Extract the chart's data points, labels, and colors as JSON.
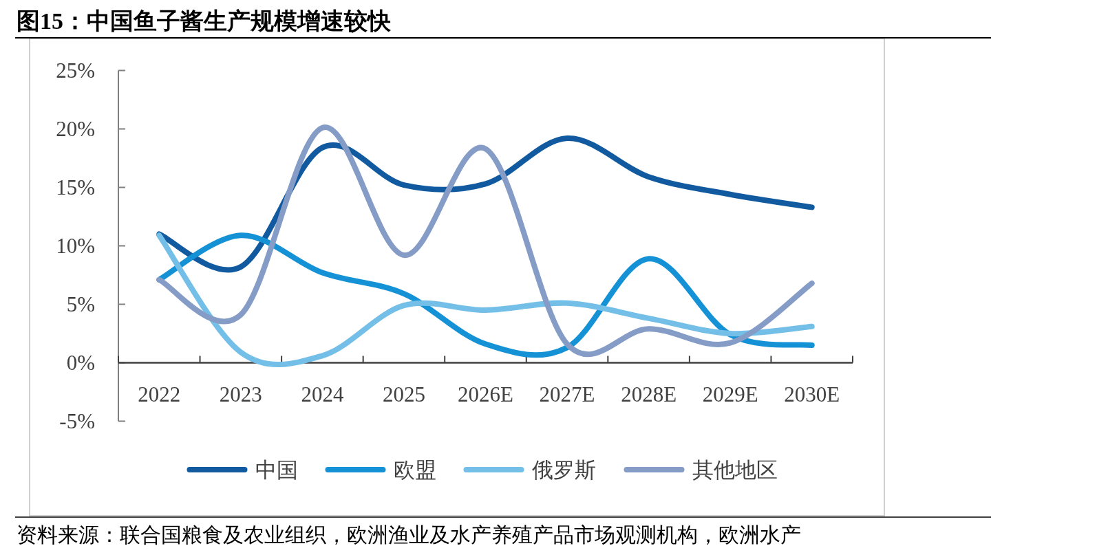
{
  "chart_data": {
    "type": "line",
    "title": "图15：中国鱼子酱生产规模增速较快",
    "categories": [
      "2022",
      "2023",
      "2024",
      "2025",
      "2026E",
      "2027E",
      "2028E",
      "2029E",
      "2030E"
    ],
    "series": [
      {
        "name": "中国",
        "color": "#115a9f",
        "values": [
          11.0,
          8.2,
          18.4,
          15.2,
          15.3,
          19.2,
          15.9,
          14.4,
          13.3
        ]
      },
      {
        "name": "欧盟",
        "color": "#1592d6",
        "values": [
          7.1,
          10.9,
          7.7,
          5.9,
          1.6,
          1.3,
          8.9,
          2.4,
          1.5
        ]
      },
      {
        "name": "俄罗斯",
        "color": "#74bfe8",
        "values": [
          10.9,
          0.9,
          0.6,
          4.9,
          4.5,
          5.1,
          3.8,
          2.5,
          3.1
        ]
      },
      {
        "name": "其他地区",
        "color": "#849cc6",
        "values": [
          7.1,
          4.1,
          20.1,
          9.2,
          18.3,
          1.6,
          2.9,
          1.7,
          6.8
        ]
      }
    ],
    "ylim": [
      -5,
      25
    ],
    "yticks": [
      {
        "value": -5,
        "label": "-5%"
      },
      {
        "value": 0,
        "label": "0%"
      },
      {
        "value": 5,
        "label": "5%"
      },
      {
        "value": 10,
        "label": "10%"
      },
      {
        "value": 15,
        "label": "15%"
      },
      {
        "value": 20,
        "label": "20%"
      },
      {
        "value": 25,
        "label": "25%"
      }
    ],
    "grid": false,
    "legend": "bottom",
    "marker": "none",
    "line_style": "solid",
    "annotations": [
      "资料来源：联合国粮食及农业组织，欧洲渔业及水产养殖产品市场观测机构，欧洲水产"
    ]
  }
}
